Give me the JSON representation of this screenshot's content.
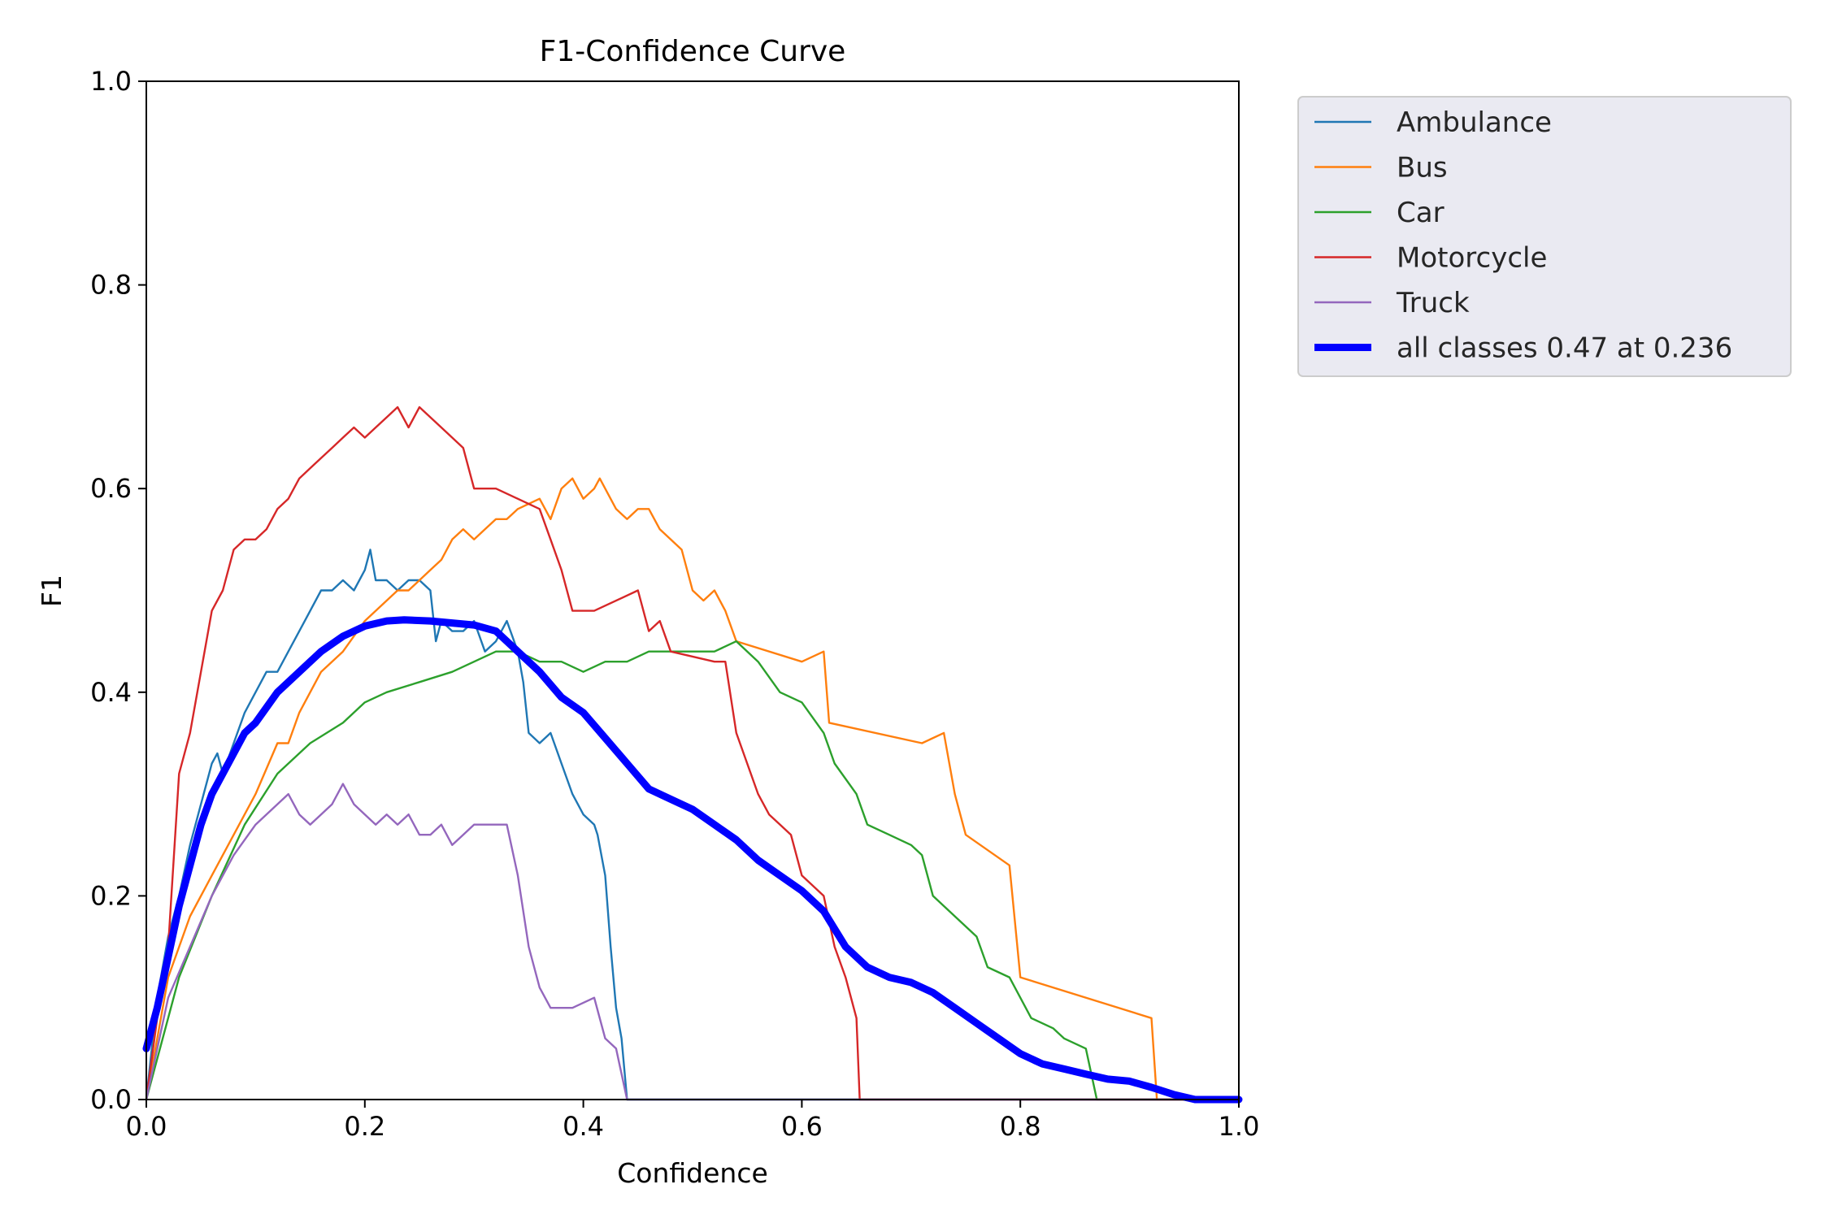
{
  "chart_data": {
    "type": "line",
    "title": "F1-Confidence Curve",
    "xlabel": "Confidence",
    "ylabel": "F1",
    "xlim": [
      0,
      1
    ],
    "ylim": [
      0,
      1
    ],
    "xticks": [
      "0.0",
      "0.2",
      "0.4",
      "0.6",
      "0.8",
      "1.0"
    ],
    "yticks": [
      "0.0",
      "0.2",
      "0.4",
      "0.6",
      "0.8",
      "1.0"
    ],
    "legend_position": "outside-top-right",
    "grid": false,
    "series": [
      {
        "name": "Ambulance",
        "color": "#1f77b4",
        "points": [
          [
            0,
            0
          ],
          [
            0.01,
            0.1
          ],
          [
            0.02,
            0.16
          ],
          [
            0.03,
            0.2
          ],
          [
            0.04,
            0.25
          ],
          [
            0.05,
            0.29
          ],
          [
            0.06,
            0.33
          ],
          [
            0.065,
            0.34
          ],
          [
            0.07,
            0.32
          ],
          [
            0.08,
            0.35
          ],
          [
            0.09,
            0.38
          ],
          [
            0.1,
            0.4
          ],
          [
            0.11,
            0.42
          ],
          [
            0.12,
            0.42
          ],
          [
            0.13,
            0.44
          ],
          [
            0.14,
            0.46
          ],
          [
            0.15,
            0.48
          ],
          [
            0.16,
            0.5
          ],
          [
            0.17,
            0.5
          ],
          [
            0.18,
            0.51
          ],
          [
            0.19,
            0.5
          ],
          [
            0.2,
            0.52
          ],
          [
            0.205,
            0.54
          ],
          [
            0.21,
            0.51
          ],
          [
            0.22,
            0.51
          ],
          [
            0.23,
            0.5
          ],
          [
            0.24,
            0.51
          ],
          [
            0.25,
            0.51
          ],
          [
            0.26,
            0.5
          ],
          [
            0.265,
            0.45
          ],
          [
            0.27,
            0.47
          ],
          [
            0.28,
            0.46
          ],
          [
            0.29,
            0.46
          ],
          [
            0.3,
            0.47
          ],
          [
            0.31,
            0.44
          ],
          [
            0.32,
            0.45
          ],
          [
            0.33,
            0.47
          ],
          [
            0.34,
            0.44
          ],
          [
            0.345,
            0.41
          ],
          [
            0.35,
            0.36
          ],
          [
            0.36,
            0.35
          ],
          [
            0.37,
            0.36
          ],
          [
            0.38,
            0.33
          ],
          [
            0.39,
            0.3
          ],
          [
            0.4,
            0.28
          ],
          [
            0.41,
            0.27
          ],
          [
            0.413,
            0.26
          ],
          [
            0.42,
            0.22
          ],
          [
            0.425,
            0.15
          ],
          [
            0.43,
            0.09
          ],
          [
            0.435,
            0.06
          ],
          [
            0.44,
            0
          ],
          [
            1,
            0
          ]
        ]
      },
      {
        "name": "Bus",
        "color": "#ff7f0e",
        "points": [
          [
            0,
            0
          ],
          [
            0.02,
            0.12
          ],
          [
            0.04,
            0.18
          ],
          [
            0.06,
            0.22
          ],
          [
            0.08,
            0.26
          ],
          [
            0.1,
            0.3
          ],
          [
            0.12,
            0.35
          ],
          [
            0.13,
            0.35
          ],
          [
            0.14,
            0.38
          ],
          [
            0.16,
            0.42
          ],
          [
            0.18,
            0.44
          ],
          [
            0.2,
            0.47
          ],
          [
            0.22,
            0.49
          ],
          [
            0.23,
            0.5
          ],
          [
            0.24,
            0.5
          ],
          [
            0.25,
            0.51
          ],
          [
            0.26,
            0.52
          ],
          [
            0.27,
            0.53
          ],
          [
            0.28,
            0.55
          ],
          [
            0.29,
            0.56
          ],
          [
            0.3,
            0.55
          ],
          [
            0.31,
            0.56
          ],
          [
            0.32,
            0.57
          ],
          [
            0.33,
            0.57
          ],
          [
            0.34,
            0.58
          ],
          [
            0.36,
            0.59
          ],
          [
            0.37,
            0.57
          ],
          [
            0.38,
            0.6
          ],
          [
            0.39,
            0.61
          ],
          [
            0.4,
            0.59
          ],
          [
            0.41,
            0.6
          ],
          [
            0.415,
            0.61
          ],
          [
            0.43,
            0.58
          ],
          [
            0.44,
            0.57
          ],
          [
            0.45,
            0.58
          ],
          [
            0.46,
            0.58
          ],
          [
            0.47,
            0.56
          ],
          [
            0.48,
            0.55
          ],
          [
            0.49,
            0.54
          ],
          [
            0.5,
            0.5
          ],
          [
            0.51,
            0.49
          ],
          [
            0.52,
            0.5
          ],
          [
            0.53,
            0.48
          ],
          [
            0.54,
            0.45
          ],
          [
            0.6,
            0.43
          ],
          [
            0.62,
            0.44
          ],
          [
            0.625,
            0.37
          ],
          [
            0.71,
            0.35
          ],
          [
            0.73,
            0.36
          ],
          [
            0.74,
            0.3
          ],
          [
            0.75,
            0.26
          ],
          [
            0.79,
            0.23
          ],
          [
            0.8,
            0.12
          ],
          [
            0.92,
            0.08
          ],
          [
            0.925,
            0
          ],
          [
            1,
            0
          ]
        ]
      },
      {
        "name": "Car",
        "color": "#2ca02c",
        "points": [
          [
            0,
            0
          ],
          [
            0.03,
            0.12
          ],
          [
            0.06,
            0.2
          ],
          [
            0.09,
            0.27
          ],
          [
            0.12,
            0.32
          ],
          [
            0.15,
            0.35
          ],
          [
            0.18,
            0.37
          ],
          [
            0.2,
            0.39
          ],
          [
            0.22,
            0.4
          ],
          [
            0.25,
            0.41
          ],
          [
            0.28,
            0.42
          ],
          [
            0.3,
            0.43
          ],
          [
            0.32,
            0.44
          ],
          [
            0.34,
            0.44
          ],
          [
            0.36,
            0.43
          ],
          [
            0.38,
            0.43
          ],
          [
            0.4,
            0.42
          ],
          [
            0.42,
            0.43
          ],
          [
            0.44,
            0.43
          ],
          [
            0.46,
            0.44
          ],
          [
            0.48,
            0.44
          ],
          [
            0.5,
            0.44
          ],
          [
            0.52,
            0.44
          ],
          [
            0.54,
            0.45
          ],
          [
            0.56,
            0.43
          ],
          [
            0.58,
            0.4
          ],
          [
            0.6,
            0.39
          ],
          [
            0.62,
            0.36
          ],
          [
            0.63,
            0.33
          ],
          [
            0.65,
            0.3
          ],
          [
            0.66,
            0.27
          ],
          [
            0.68,
            0.26
          ],
          [
            0.7,
            0.25
          ],
          [
            0.71,
            0.24
          ],
          [
            0.72,
            0.2
          ],
          [
            0.74,
            0.18
          ],
          [
            0.76,
            0.16
          ],
          [
            0.77,
            0.13
          ],
          [
            0.79,
            0.12
          ],
          [
            0.8,
            0.1
          ],
          [
            0.81,
            0.08
          ],
          [
            0.83,
            0.07
          ],
          [
            0.84,
            0.06
          ],
          [
            0.86,
            0.05
          ],
          [
            0.87,
            0
          ],
          [
            1,
            0
          ]
        ]
      },
      {
        "name": "Motorcycle",
        "color": "#d62728",
        "points": [
          [
            0,
            0
          ],
          [
            0.01,
            0.08
          ],
          [
            0.02,
            0.15
          ],
          [
            0.03,
            0.32
          ],
          [
            0.04,
            0.36
          ],
          [
            0.05,
            0.42
          ],
          [
            0.06,
            0.48
          ],
          [
            0.07,
            0.5
          ],
          [
            0.08,
            0.54
          ],
          [
            0.09,
            0.55
          ],
          [
            0.1,
            0.55
          ],
          [
            0.11,
            0.56
          ],
          [
            0.12,
            0.58
          ],
          [
            0.13,
            0.59
          ],
          [
            0.14,
            0.61
          ],
          [
            0.15,
            0.62
          ],
          [
            0.16,
            0.63
          ],
          [
            0.17,
            0.64
          ],
          [
            0.18,
            0.65
          ],
          [
            0.19,
            0.66
          ],
          [
            0.2,
            0.65
          ],
          [
            0.21,
            0.66
          ],
          [
            0.22,
            0.67
          ],
          [
            0.23,
            0.68
          ],
          [
            0.24,
            0.66
          ],
          [
            0.25,
            0.68
          ],
          [
            0.27,
            0.66
          ],
          [
            0.29,
            0.64
          ],
          [
            0.3,
            0.6
          ],
          [
            0.32,
            0.6
          ],
          [
            0.36,
            0.58
          ],
          [
            0.37,
            0.55
          ],
          [
            0.38,
            0.52
          ],
          [
            0.39,
            0.48
          ],
          [
            0.41,
            0.48
          ],
          [
            0.45,
            0.5
          ],
          [
            0.46,
            0.46
          ],
          [
            0.47,
            0.47
          ],
          [
            0.48,
            0.44
          ],
          [
            0.52,
            0.43
          ],
          [
            0.53,
            0.43
          ],
          [
            0.54,
            0.36
          ],
          [
            0.55,
            0.33
          ],
          [
            0.56,
            0.3
          ],
          [
            0.57,
            0.28
          ],
          [
            0.59,
            0.26
          ],
          [
            0.6,
            0.22
          ],
          [
            0.62,
            0.2
          ],
          [
            0.63,
            0.15
          ],
          [
            0.64,
            0.12
          ],
          [
            0.65,
            0.08
          ],
          [
            0.653,
            0
          ],
          [
            1,
            0
          ]
        ]
      },
      {
        "name": "Truck",
        "color": "#9467bd",
        "points": [
          [
            0,
            0
          ],
          [
            0.02,
            0.1
          ],
          [
            0.04,
            0.15
          ],
          [
            0.06,
            0.2
          ],
          [
            0.08,
            0.24
          ],
          [
            0.1,
            0.27
          ],
          [
            0.12,
            0.29
          ],
          [
            0.13,
            0.3
          ],
          [
            0.14,
            0.28
          ],
          [
            0.15,
            0.27
          ],
          [
            0.16,
            0.28
          ],
          [
            0.17,
            0.29
          ],
          [
            0.18,
            0.31
          ],
          [
            0.19,
            0.29
          ],
          [
            0.2,
            0.28
          ],
          [
            0.21,
            0.27
          ],
          [
            0.22,
            0.28
          ],
          [
            0.23,
            0.27
          ],
          [
            0.24,
            0.28
          ],
          [
            0.25,
            0.26
          ],
          [
            0.26,
            0.26
          ],
          [
            0.27,
            0.27
          ],
          [
            0.28,
            0.25
          ],
          [
            0.29,
            0.26
          ],
          [
            0.3,
            0.27
          ],
          [
            0.31,
            0.27
          ],
          [
            0.33,
            0.27
          ],
          [
            0.34,
            0.22
          ],
          [
            0.35,
            0.15
          ],
          [
            0.36,
            0.11
          ],
          [
            0.37,
            0.09
          ],
          [
            0.39,
            0.09
          ],
          [
            0.41,
            0.1
          ],
          [
            0.42,
            0.06
          ],
          [
            0.43,
            0.05
          ],
          [
            0.44,
            0
          ],
          [
            1,
            0
          ]
        ]
      },
      {
        "name": "all classes 0.47 at 0.236",
        "color": "#0000ff",
        "thick": true,
        "points": [
          [
            0,
            0.05
          ],
          [
            0.01,
            0.09
          ],
          [
            0.02,
            0.14
          ],
          [
            0.03,
            0.19
          ],
          [
            0.04,
            0.23
          ],
          [
            0.05,
            0.27
          ],
          [
            0.06,
            0.3
          ],
          [
            0.07,
            0.32
          ],
          [
            0.08,
            0.34
          ],
          [
            0.09,
            0.36
          ],
          [
            0.1,
            0.37
          ],
          [
            0.12,
            0.4
          ],
          [
            0.14,
            0.42
          ],
          [
            0.16,
            0.44
          ],
          [
            0.18,
            0.455
          ],
          [
            0.2,
            0.465
          ],
          [
            0.22,
            0.47
          ],
          [
            0.236,
            0.471
          ],
          [
            0.26,
            0.47
          ],
          [
            0.28,
            0.468
          ],
          [
            0.3,
            0.466
          ],
          [
            0.32,
            0.46
          ],
          [
            0.34,
            0.44
          ],
          [
            0.36,
            0.42
          ],
          [
            0.38,
            0.395
          ],
          [
            0.4,
            0.38
          ],
          [
            0.42,
            0.355
          ],
          [
            0.44,
            0.33
          ],
          [
            0.46,
            0.305
          ],
          [
            0.48,
            0.295
          ],
          [
            0.5,
            0.285
          ],
          [
            0.52,
            0.27
          ],
          [
            0.54,
            0.255
          ],
          [
            0.56,
            0.235
          ],
          [
            0.58,
            0.22
          ],
          [
            0.6,
            0.205
          ],
          [
            0.62,
            0.185
          ],
          [
            0.64,
            0.15
          ],
          [
            0.66,
            0.13
          ],
          [
            0.68,
            0.12
          ],
          [
            0.7,
            0.115
          ],
          [
            0.72,
            0.105
          ],
          [
            0.74,
            0.09
          ],
          [
            0.76,
            0.075
          ],
          [
            0.78,
            0.06
          ],
          [
            0.8,
            0.045
          ],
          [
            0.82,
            0.035
          ],
          [
            0.84,
            0.03
          ],
          [
            0.86,
            0.025
          ],
          [
            0.88,
            0.02
          ],
          [
            0.9,
            0.018
          ],
          [
            0.92,
            0.012
          ],
          [
            0.94,
            0.005
          ],
          [
            0.96,
            0
          ],
          [
            1,
            0
          ]
        ]
      }
    ]
  }
}
